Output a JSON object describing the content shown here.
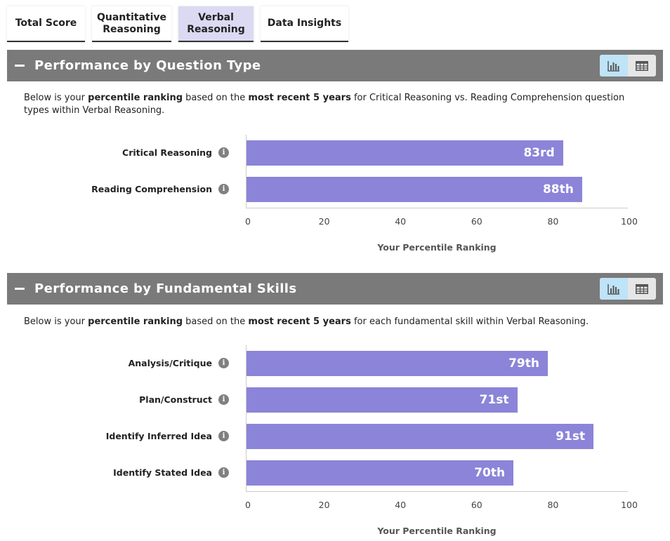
{
  "tabs": [
    {
      "label_line1": "Total Score",
      "label_line2": ""
    },
    {
      "label_line1": "Quantitative",
      "label_line2": "Reasoning"
    },
    {
      "label_line1": "Verbal",
      "label_line2": "Reasoning"
    },
    {
      "label_line1": "Data Insights",
      "label_line2": ""
    }
  ],
  "active_tab": "Verbal Reasoning",
  "icons": {
    "collapse": "minus-icon",
    "chart_view": "bar-chart-icon",
    "table_view": "table-icon",
    "info": "info-icon"
  },
  "colors": {
    "header_bg": "#7a7a7a",
    "bar": "#8b84d8",
    "active_tab": "#dcd9f3",
    "toggle_active": "#bfe3f7"
  },
  "sections": [
    {
      "title": "Performance by Question Type",
      "desc_parts": [
        "Below is your ",
        "percentile ranking",
        " based on the ",
        "most recent 5 years",
        " for Critical Reasoning vs. Reading Comprehension question types within Verbal Reasoning."
      ],
      "chart_data": {
        "type": "bar",
        "orientation": "horizontal",
        "categories": [
          "Critical Reasoning",
          "Reading Comprehension"
        ],
        "values": [
          83,
          88
        ],
        "value_labels": [
          "83rd",
          "88th"
        ],
        "xlim": [
          0,
          100
        ],
        "xticks": [
          "0",
          "20",
          "40",
          "60",
          "80",
          "100"
        ],
        "xlabel": "Your Percentile Ranking"
      }
    },
    {
      "title": "Performance by Fundamental Skills",
      "desc_parts": [
        "Below is your ",
        "percentile ranking",
        " based on the ",
        "most recent 5 years",
        " for each fundamental skill within Verbal Reasoning.",
        ""
      ],
      "chart_data": {
        "type": "bar",
        "orientation": "horizontal",
        "categories": [
          "Analysis/Critique",
          "Plan/Construct",
          "Identify Inferred Idea",
          "Identify Stated Idea"
        ],
        "values": [
          79,
          71,
          91,
          70
        ],
        "value_labels": [
          "79th",
          "71st",
          "91st",
          "70th"
        ],
        "xlim": [
          0,
          100
        ],
        "xticks": [
          "0",
          "20",
          "40",
          "60",
          "80",
          "100"
        ],
        "xlabel": "Your Percentile Ranking"
      }
    }
  ]
}
